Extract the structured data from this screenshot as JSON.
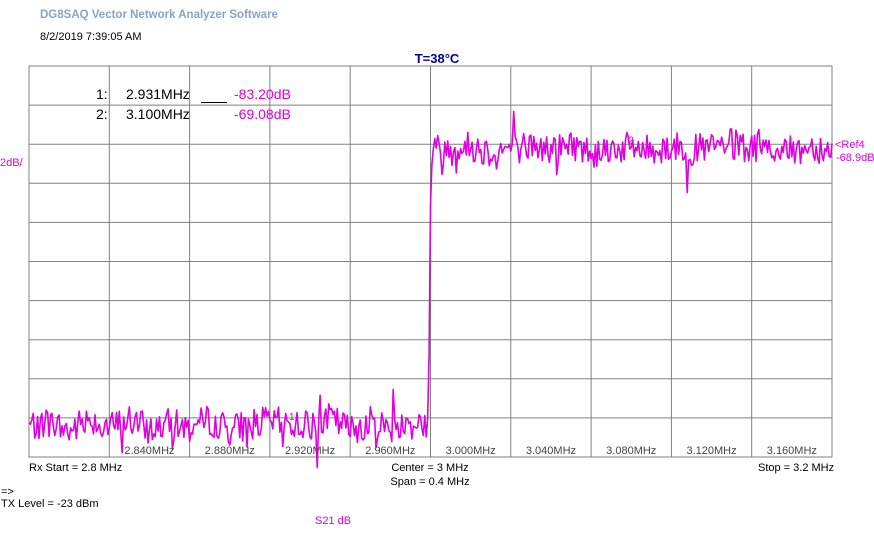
{
  "app": {
    "title": "DG8SAQ Vector Network Analyzer Software",
    "datetime": "8/2/2019   7:39:05 AM",
    "temperature": "T=38°C"
  },
  "scale": {
    "per_div_label": "2dB/",
    "ref_label": "<Ref4",
    "ref_value": "-68.9dB"
  },
  "markers": [
    {
      "num": "1:",
      "freq": "2.931MHz",
      "value": "-83.20dB",
      "trace_label": "1"
    },
    {
      "num": "2:",
      "freq": "3.100MHz",
      "value": "-69.08dB",
      "trace_label": "2"
    }
  ],
  "footer": {
    "rx_start": "Rx Start = 2.8 MHz",
    "center": "Center = 3 MHz",
    "span": "Span = 0.4 MHz",
    "stop": "Stop = 3.2 MHz",
    "arrow": "=>",
    "tx_level": "TX Level = -23 dBm",
    "trace_name": "S21  dB"
  },
  "colors": {
    "trace": "#e000e0",
    "grid": "#808080",
    "temperature": "#00009c",
    "title": "#8aa3c2"
  },
  "chart_data": {
    "type": "line",
    "title": "",
    "xlabel": "",
    "ylabel": "",
    "x_range_mhz": [
      2.8,
      3.2
    ],
    "x_tick_labels": [
      "2.840MHz",
      "2.880MHz",
      "2.920MHz",
      "2.960MHz",
      "3.000MHz",
      "3.040MHz",
      "3.080MHz",
      "3.120MHz",
      "3.160MHz"
    ],
    "y_div_db": 2,
    "y_divisions": 10,
    "y_ref_db": -68.9,
    "ref_division_from_top": 2,
    "grid": true,
    "series": [
      {
        "name": "S21  dB",
        "points": [
          [
            2.8,
            -83.3
          ],
          [
            2.81,
            -83.1
          ],
          [
            2.82,
            -83.6
          ],
          [
            2.83,
            -82.9
          ],
          [
            2.84,
            -83.4
          ],
          [
            2.85,
            -83.0
          ],
          [
            2.86,
            -83.5
          ],
          [
            2.87,
            -83.2
          ],
          [
            2.88,
            -83.4
          ],
          [
            2.89,
            -83.0
          ],
          [
            2.9,
            -83.5
          ],
          [
            2.91,
            -83.2
          ],
          [
            2.92,
            -83.1
          ],
          [
            2.931,
            -83.2
          ],
          [
            2.94,
            -83.3
          ],
          [
            2.95,
            -82.9
          ],
          [
            2.96,
            -83.5
          ],
          [
            2.97,
            -83.1
          ],
          [
            2.98,
            -83.4
          ],
          [
            2.99,
            -83.2
          ],
          [
            2.995,
            -83.1
          ],
          [
            2.999,
            -83.3
          ],
          [
            3.0,
            -72.0
          ],
          [
            3.001,
            -69.1
          ],
          [
            3.01,
            -69.2
          ],
          [
            3.02,
            -69.0
          ],
          [
            3.03,
            -69.3
          ],
          [
            3.04,
            -69.1
          ],
          [
            3.05,
            -69.0
          ],
          [
            3.06,
            -69.2
          ],
          [
            3.07,
            -68.9
          ],
          [
            3.08,
            -69.3
          ],
          [
            3.09,
            -69.1
          ],
          [
            3.1,
            -69.08
          ],
          [
            3.11,
            -69.2
          ],
          [
            3.12,
            -69.0
          ],
          [
            3.13,
            -69.2
          ],
          [
            3.14,
            -69.1
          ],
          [
            3.15,
            -68.9
          ],
          [
            3.16,
            -69.2
          ],
          [
            3.17,
            -69.1
          ],
          [
            3.18,
            -69.3
          ],
          [
            3.19,
            -69.0
          ],
          [
            3.2,
            -69.2
          ]
        ],
        "noise_pp_db": 1.6
      }
    ],
    "markers": [
      {
        "label": "1",
        "x_mhz": 2.931,
        "y_db": -83.2
      },
      {
        "label": "2",
        "x_mhz": 3.1,
        "y_db": -69.08
      }
    ]
  }
}
